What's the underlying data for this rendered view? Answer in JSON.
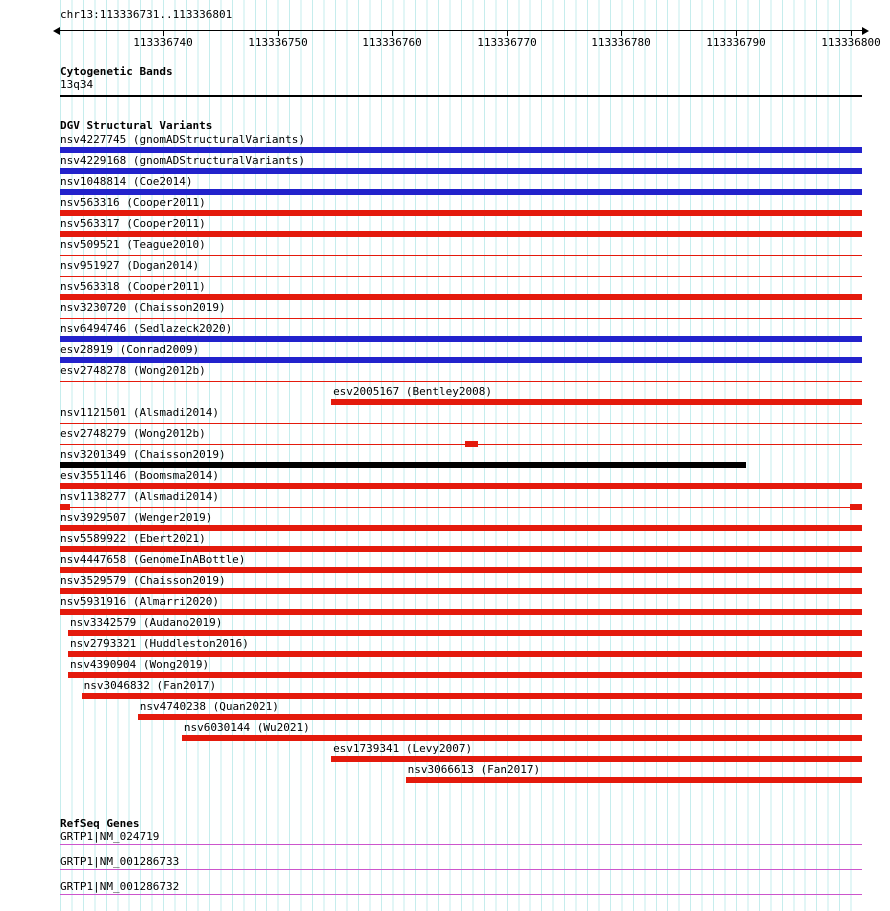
{
  "header": {
    "region": "chr13:113336731..113336801"
  },
  "ruler": {
    "start": 113336731,
    "end": 113336801,
    "ticks": [
      113336740,
      113336750,
      113336760,
      113336770,
      113336780,
      113336790,
      113336800
    ]
  },
  "cytobands": {
    "title": "Cytogenetic Bands",
    "band": "13q34"
  },
  "dgv": {
    "title": "DGV Structural Variants",
    "variants": [
      {
        "label": "nsv4227745 (gnomADStructuralVariants)",
        "color": "blue",
        "segments": [
          {
            "s": 0,
            "e": 1,
            "h": "thick"
          }
        ]
      },
      {
        "label": "nsv4229168 (gnomADStructuralVariants)",
        "color": "blue",
        "segments": [
          {
            "s": 0,
            "e": 1,
            "h": "thick"
          }
        ]
      },
      {
        "label": "nsv1048814 (Coe2014)",
        "color": "blue",
        "segments": [
          {
            "s": 0,
            "e": 1,
            "h": "thick"
          }
        ]
      },
      {
        "label": "nsv563316 (Cooper2011)",
        "color": "red",
        "segments": [
          {
            "s": 0,
            "e": 1,
            "h": "thick"
          }
        ]
      },
      {
        "label": "nsv563317 (Cooper2011)",
        "color": "red",
        "segments": [
          {
            "s": 0,
            "e": 1,
            "h": "thick"
          }
        ]
      },
      {
        "label": "nsv509521 (Teague2010)",
        "color": "red",
        "segments": [
          {
            "s": 0,
            "e": 1,
            "h": "thin"
          }
        ]
      },
      {
        "label": "nsv951927 (Dogan2014)",
        "color": "red",
        "segments": [
          {
            "s": 0,
            "e": 1,
            "h": "thin"
          }
        ]
      },
      {
        "label": "nsv563318 (Cooper2011)",
        "color": "red",
        "segments": [
          {
            "s": 0,
            "e": 1,
            "h": "thick"
          }
        ]
      },
      {
        "label": "nsv3230720 (Chaisson2019)",
        "color": "red",
        "segments": [
          {
            "s": 0,
            "e": 1,
            "h": "thin"
          }
        ]
      },
      {
        "label": "nsv6494746 (Sedlazeck2020)",
        "color": "blue",
        "segments": [
          {
            "s": 0,
            "e": 1,
            "h": "thick"
          }
        ]
      },
      {
        "label": "esv28919 (Conrad2009)",
        "color": "blue",
        "segments": [
          {
            "s": 0,
            "e": 1,
            "h": "thick"
          }
        ]
      },
      {
        "label": "esv2748278 (Wong2012b)",
        "color": "red",
        "segments": [
          {
            "s": 0,
            "e": 1,
            "h": "thin"
          }
        ]
      },
      {
        "label": "esv2005167 (Bentley2008)",
        "color": "red",
        "segments": [
          {
            "s": 0.338,
            "e": 1,
            "h": "thick"
          }
        ]
      },
      {
        "label": "nsv1121501 (Alsmadi2014)",
        "color": "red",
        "segments": [
          {
            "s": 0,
            "e": 1,
            "h": "thin"
          }
        ]
      },
      {
        "label": "esv2748279 (Wong2012b)",
        "color": "red",
        "segments": [
          {
            "s": 0,
            "e": 1,
            "h": "thin"
          },
          {
            "s": 0.505,
            "e": 0.521,
            "h": "thick"
          }
        ]
      },
      {
        "label": "nsv3201349 (Chaisson2019)",
        "color": "black",
        "segments": [
          {
            "s": 0,
            "e": 0.855,
            "h": "thick"
          }
        ]
      },
      {
        "label": "esv3551146 (Boomsma2014)",
        "color": "red",
        "segments": [
          {
            "s": 0,
            "e": 1,
            "h": "thick"
          }
        ]
      },
      {
        "label": "nsv1138277 (Alsmadi2014)",
        "color": "red",
        "segments": [
          {
            "s": 0,
            "e": 1,
            "h": "thin"
          },
          {
            "s": 0,
            "e": 0.013,
            "h": "thick"
          },
          {
            "s": 0.985,
            "e": 1,
            "h": "thick"
          }
        ]
      },
      {
        "label": "nsv3929507 (Wenger2019)",
        "color": "red",
        "segments": [
          {
            "s": 0,
            "e": 1,
            "h": "thick"
          }
        ]
      },
      {
        "label": "nsv5589922 (Ebert2021)",
        "color": "red",
        "segments": [
          {
            "s": 0,
            "e": 1,
            "h": "thick"
          }
        ]
      },
      {
        "label": "nsv4447658 (GenomeInABottle)",
        "color": "red",
        "segments": [
          {
            "s": 0,
            "e": 1,
            "h": "thick"
          }
        ]
      },
      {
        "label": "nsv3529579 (Chaisson2019)",
        "color": "red",
        "segments": [
          {
            "s": 0,
            "e": 1,
            "h": "thick"
          }
        ]
      },
      {
        "label": "nsv5931916 (Almarri2020)",
        "color": "red",
        "segments": [
          {
            "s": 0,
            "e": 1,
            "h": "thick"
          }
        ]
      },
      {
        "label": "nsv3342579 (Audano2019)",
        "color": "red",
        "segments": [
          {
            "s": 0.01,
            "e": 1,
            "h": "thick"
          }
        ]
      },
      {
        "label": "nsv2793321 (Huddleston2016)",
        "color": "red",
        "segments": [
          {
            "s": 0.01,
            "e": 1,
            "h": "thick"
          }
        ]
      },
      {
        "label": "nsv4390904 (Wong2019)",
        "color": "red",
        "segments": [
          {
            "s": 0.01,
            "e": 1,
            "h": "thick"
          }
        ]
      },
      {
        "label": "nsv3046832 (Fan2017)",
        "color": "red",
        "segments": [
          {
            "s": 0.027,
            "e": 1,
            "h": "thick"
          }
        ]
      },
      {
        "label": "nsv4740238 (Quan2021)",
        "color": "red",
        "segments": [
          {
            "s": 0.097,
            "e": 1,
            "h": "thick"
          }
        ]
      },
      {
        "label": "nsv6030144 (Wu2021)",
        "color": "red",
        "segments": [
          {
            "s": 0.152,
            "e": 1,
            "h": "thick"
          }
        ]
      },
      {
        "label": "esv1739341 (Levy2007)",
        "color": "red",
        "segments": [
          {
            "s": 0.338,
            "e": 1,
            "h": "thick"
          }
        ]
      },
      {
        "label": "nsv3066613 (Fan2017)",
        "color": "red",
        "segments": [
          {
            "s": 0.431,
            "e": 1,
            "h": "thick"
          }
        ]
      }
    ]
  },
  "refseq": {
    "title": "RefSeq Genes",
    "genes": [
      {
        "label": "GRTP1|NM_024719"
      },
      {
        "label": "GRTP1|NM_001286733"
      },
      {
        "label": "GRTP1|NM_001286732"
      }
    ]
  },
  "colors": {
    "blue": "#2222cc",
    "red": "#e41a0c",
    "black": "#000000",
    "gene": "#cc55cc",
    "grid": "#c6eded",
    "axis": "#000000"
  }
}
